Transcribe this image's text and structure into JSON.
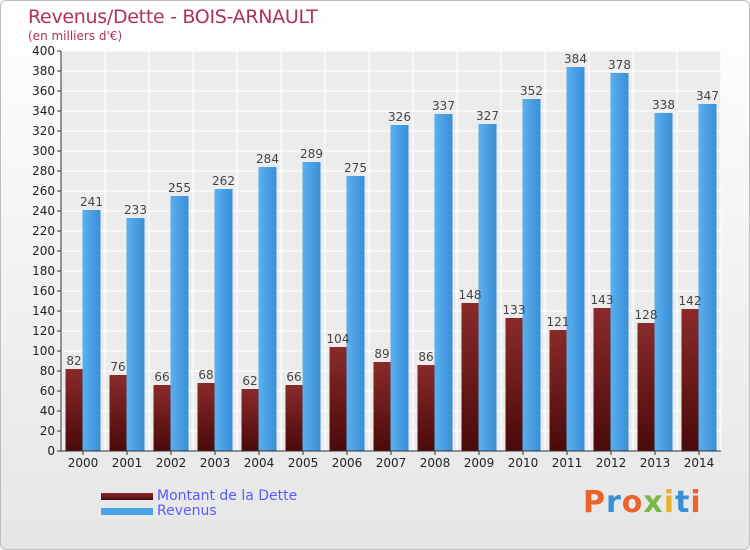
{
  "title": "Revenus/Dette - BOIS-ARNAULT",
  "subtitle": "(en milliers d'€)",
  "legend": {
    "debt_label": "Montant de la Dette",
    "revenue_label": "Revenus"
  },
  "logo": {
    "text": "Proxiti"
  },
  "colors": {
    "debt": "#6e1a1a",
    "revenue": "#4aa3e6",
    "title": "#b03060",
    "legend_text": "#5a5aff"
  },
  "chart_data": {
    "type": "bar",
    "categories": [
      "2000",
      "2001",
      "2002",
      "2003",
      "2004",
      "2005",
      "2006",
      "2007",
      "2008",
      "2009",
      "2010",
      "2011",
      "2012",
      "2013",
      "2014"
    ],
    "series": [
      {
        "name": "Montant de la Dette",
        "values": [
          82,
          76,
          66,
          68,
          62,
          66,
          104,
          89,
          86,
          148,
          133,
          121,
          143,
          128,
          142
        ]
      },
      {
        "name": "Revenus",
        "values": [
          241,
          233,
          255,
          262,
          284,
          289,
          275,
          326,
          337,
          327,
          352,
          384,
          378,
          338,
          347
        ]
      }
    ],
    "ylim": [
      0,
      400
    ],
    "ytick_step": 20,
    "grid": true
  }
}
